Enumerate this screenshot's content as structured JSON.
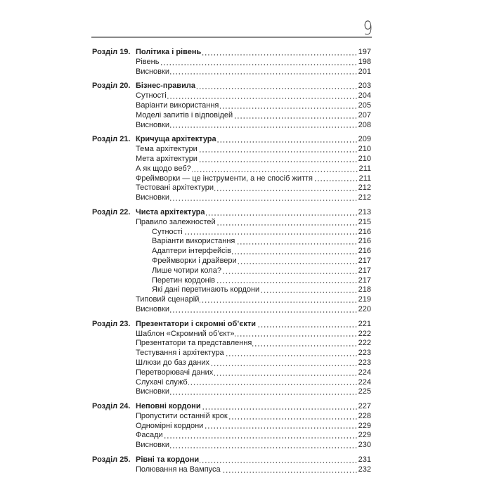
{
  "page_number": "9",
  "chapters": [
    {
      "label": "Розділ 19.",
      "title": "Політика і рівень",
      "page": "197",
      "entries": [
        {
          "title": "Рівень",
          "page": "198",
          "level": 1
        },
        {
          "title": "Висновки",
          "page": "201",
          "level": 1
        }
      ]
    },
    {
      "label": "Розділ 20.",
      "title": "Бізнес-правила",
      "page": "203",
      "entries": [
        {
          "title": "Сутності",
          "page": "204",
          "level": 1
        },
        {
          "title": "Варіанти використання",
          "page": "205",
          "level": 1
        },
        {
          "title": "Моделі запитів і відповідей",
          "page": "207",
          "level": 1
        },
        {
          "title": "Висновки",
          "page": "208",
          "level": 1
        }
      ]
    },
    {
      "label": "Розділ 21.",
      "title": "Кричуща архітектура",
      "page": "209",
      "entries": [
        {
          "title": "Тема архітектури",
          "page": "210",
          "level": 1
        },
        {
          "title": "Мета архітектури",
          "page": "210",
          "level": 1
        },
        {
          "title": "А як щодо веб?",
          "page": "211",
          "level": 1
        },
        {
          "title": "Фреймворки — це інструменти, а не спосіб життя",
          "page": "211",
          "level": 1
        },
        {
          "title": "Тестовані архітектури",
          "page": "212",
          "level": 1
        },
        {
          "title": "Висновки",
          "page": "212",
          "level": 1
        }
      ]
    },
    {
      "label": "Розділ 22.",
      "title": "Чиста архітектура",
      "page": "213",
      "entries": [
        {
          "title": "Правило залежностей",
          "page": "215",
          "level": 1
        },
        {
          "title": "Сутності",
          "page": "216",
          "level": 2
        },
        {
          "title": "Варіанти використання",
          "page": "216",
          "level": 2
        },
        {
          "title": "Адаптери інтерфейсів",
          "page": "216",
          "level": 2
        },
        {
          "title": "Фреймворки і драйвери",
          "page": "217",
          "level": 2
        },
        {
          "title": "Лише чотири кола?",
          "page": "217",
          "level": 2
        },
        {
          "title": "Перетин кордонів",
          "page": "217",
          "level": 2
        },
        {
          "title": "Які дані перетинають кордони",
          "page": "218",
          "level": 2
        },
        {
          "title": "Типовий сценарій",
          "page": "219",
          "level": 1
        },
        {
          "title": "Висновки",
          "page": "220",
          "level": 1
        }
      ]
    },
    {
      "label": "Розділ 23.",
      "title": "Презентатори і скромні об’єкти",
      "page": "221",
      "entries": [
        {
          "title": "Шаблон «Скромний об’єкт»",
          "page": "222",
          "level": 1
        },
        {
          "title": "Презентатори та представлення",
          "page": "222",
          "level": 1
        },
        {
          "title": "Тестування і архітектура",
          "page": "223",
          "level": 1
        },
        {
          "title": "Шлюзи до баз даних",
          "page": "223",
          "level": 1
        },
        {
          "title": "Перетворювачі даних",
          "page": "224",
          "level": 1
        },
        {
          "title": "Слухачі служб",
          "page": "224",
          "level": 1
        },
        {
          "title": "Висновки",
          "page": "225",
          "level": 1
        }
      ]
    },
    {
      "label": "Розділ 24.",
      "title": "Неповні кордони",
      "page": "227",
      "entries": [
        {
          "title": "Пропустити останній крок",
          "page": "228",
          "level": 1
        },
        {
          "title": "Одномірні кордони",
          "page": "229",
          "level": 1
        },
        {
          "title": "Фасади",
          "page": "229",
          "level": 1
        },
        {
          "title": "Висновки",
          "page": "230",
          "level": 1
        }
      ]
    },
    {
      "label": "Розділ 25.",
      "title": "Рівні та кордони",
      "page": "231",
      "entries": [
        {
          "title": "Полювання на Вампуса",
          "page": "232",
          "level": 1
        }
      ]
    }
  ]
}
